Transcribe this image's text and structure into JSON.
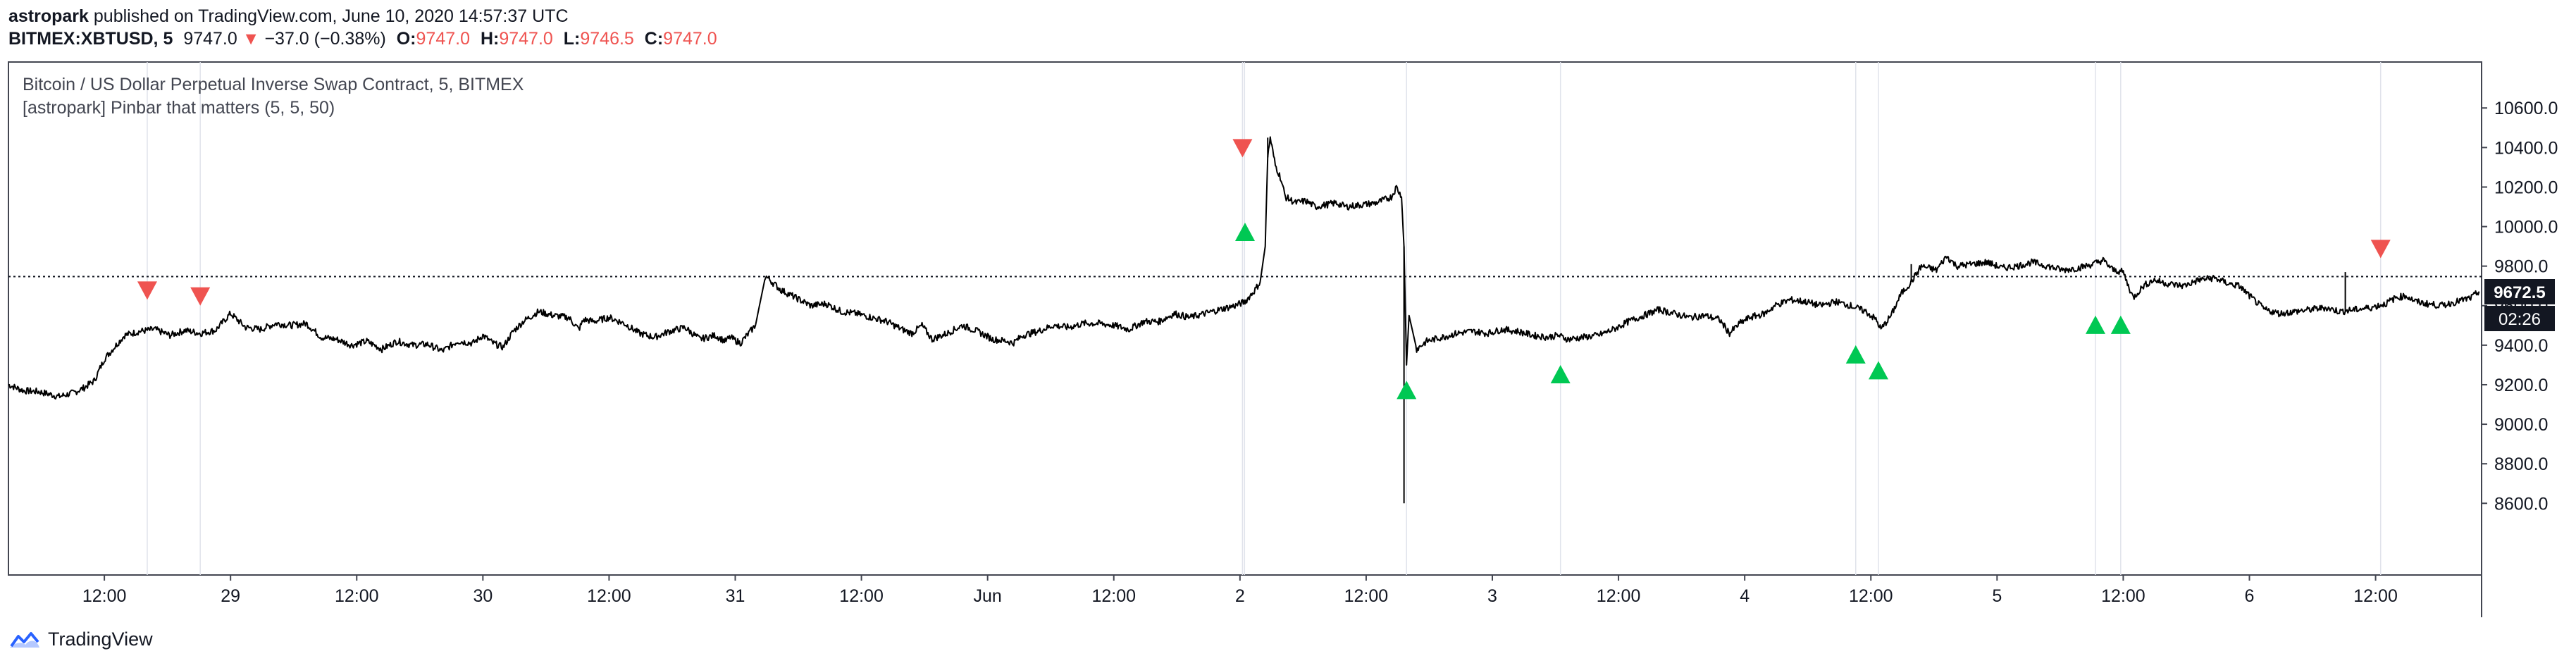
{
  "publish": {
    "author": "astropark",
    "text": "published on TradingView.com, June 10, 2020 14:57:37 UTC"
  },
  "ticker": {
    "symbol": "BITMEX:XBTUSD, 5",
    "last": "9747.0",
    "arrow": "▼",
    "change": "−37.0 (−0.38%)",
    "o_label": "O:",
    "o": "9747.0",
    "h_label": "H:",
    "h": "9747.0",
    "l_label": "L:",
    "l": "9746.5",
    "c_label": "C:",
    "c": "9747.0"
  },
  "pane": {
    "title": "Bitcoin / US Dollar Perpetual Inverse Swap Contract, 5, BITMEX",
    "indicator": "[astropark] Pinbar that matters (5, 5, 50)"
  },
  "price_tag": {
    "price": "9672.5",
    "countdown": "02:26"
  },
  "footer": {
    "brand": "TradingView"
  },
  "colors": {
    "bear": "#ef5350",
    "bull": "#00c853",
    "line": "#000000",
    "axis": "#131722",
    "grid": "#e0e3eb"
  },
  "chart_data": {
    "type": "line",
    "series": [
      {
        "points": [
          [
            0,
            9200
          ],
          [
            6,
            9170
          ],
          [
            12,
            9165
          ],
          [
            20,
            9140
          ],
          [
            26,
            9160
          ],
          [
            30,
            9185
          ],
          [
            34,
            9220
          ],
          [
            38,
            9330
          ],
          [
            42,
            9390
          ],
          [
            46,
            9450
          ],
          [
            52,
            9470
          ],
          [
            58,
            9480
          ],
          [
            64,
            9450
          ],
          [
            70,
            9475
          ],
          [
            76,
            9460
          ],
          [
            82,
            9475
          ],
          [
            88,
            9560
          ],
          [
            94,
            9490
          ],
          [
            100,
            9480
          ],
          [
            106,
            9510
          ],
          [
            112,
            9500
          ],
          [
            118,
            9510
          ],
          [
            124,
            9440
          ],
          [
            130,
            9430
          ],
          [
            136,
            9400
          ],
          [
            142,
            9420
          ],
          [
            148,
            9380
          ],
          [
            154,
            9420
          ],
          [
            160,
            9400
          ],
          [
            166,
            9405
          ],
          [
            172,
            9370
          ],
          [
            178,
            9420
          ],
          [
            184,
            9410
          ],
          [
            188,
            9450
          ],
          [
            192,
            9410
          ],
          [
            196,
            9390
          ],
          [
            200,
            9470
          ],
          [
            204,
            9520
          ],
          [
            210,
            9570
          ],
          [
            216,
            9550
          ],
          [
            222,
            9540
          ],
          [
            226,
            9480
          ],
          [
            228,
            9530
          ],
          [
            232,
            9520
          ],
          [
            238,
            9540
          ],
          [
            244,
            9510
          ],
          [
            250,
            9460
          ],
          [
            256,
            9440
          ],
          [
            262,
            9470
          ],
          [
            268,
            9490
          ],
          [
            274,
            9430
          ],
          [
            280,
            9450
          ],
          [
            284,
            9420
          ],
          [
            286,
            9440
          ],
          [
            290,
            9410
          ],
          [
            296,
            9500
          ],
          [
            300,
            9750
          ],
          [
            306,
            9680
          ],
          [
            312,
            9640
          ],
          [
            318,
            9600
          ],
          [
            324,
            9610
          ],
          [
            330,
            9570
          ],
          [
            336,
            9560
          ],
          [
            342,
            9540
          ],
          [
            348,
            9520
          ],
          [
            354,
            9480
          ],
          [
            358,
            9460
          ],
          [
            362,
            9500
          ],
          [
            366,
            9430
          ],
          [
            372,
            9460
          ],
          [
            378,
            9500
          ],
          [
            384,
            9470
          ],
          [
            390,
            9430
          ],
          [
            396,
            9420
          ],
          [
            398,
            9410
          ],
          [
            402,
            9450
          ],
          [
            408,
            9470
          ],
          [
            414,
            9500
          ],
          [
            420,
            9490
          ],
          [
            426,
            9510
          ],
          [
            432,
            9510
          ],
          [
            438,
            9500
          ],
          [
            444,
            9480
          ],
          [
            450,
            9520
          ],
          [
            456,
            9520
          ],
          [
            462,
            9560
          ],
          [
            468,
            9540
          ],
          [
            474,
            9560
          ],
          [
            480,
            9580
          ],
          [
            486,
            9600
          ],
          [
            490,
            9620
          ],
          [
            494,
            9680
          ],
          [
            496,
            9720
          ],
          [
            498,
            9900
          ],
          [
            499,
            10350
          ],
          [
            500,
            10450
          ],
          [
            502,
            10310
          ],
          [
            504,
            10250
          ],
          [
            506,
            10150
          ],
          [
            510,
            10120
          ],
          [
            514,
            10130
          ],
          [
            518,
            10100
          ],
          [
            522,
            10110
          ],
          [
            526,
            10120
          ],
          [
            530,
            10100
          ],
          [
            536,
            10110
          ],
          [
            542,
            10120
          ],
          [
            548,
            10150
          ],
          [
            550,
            10200
          ],
          [
            552,
            10150
          ],
          [
            553,
            9900
          ],
          [
            554,
            9300
          ],
          [
            555,
            9550
          ],
          [
            558,
            9380
          ],
          [
            562,
            9420
          ],
          [
            568,
            9440
          ],
          [
            574,
            9460
          ],
          [
            580,
            9470
          ],
          [
            586,
            9460
          ],
          [
            592,
            9480
          ],
          [
            598,
            9470
          ],
          [
            604,
            9450
          ],
          [
            610,
            9440
          ],
          [
            614,
            9450
          ],
          [
            616,
            9440
          ],
          [
            618,
            9430
          ],
          [
            624,
            9440
          ],
          [
            630,
            9450
          ],
          [
            636,
            9480
          ],
          [
            642,
            9520
          ],
          [
            648,
            9550
          ],
          [
            654,
            9580
          ],
          [
            660,
            9560
          ],
          [
            666,
            9540
          ],
          [
            672,
            9550
          ],
          [
            678,
            9530
          ],
          [
            682,
            9460
          ],
          [
            686,
            9510
          ],
          [
            690,
            9540
          ],
          [
            696,
            9560
          ],
          [
            700,
            9600
          ],
          [
            706,
            9630
          ],
          [
            712,
            9620
          ],
          [
            718,
            9600
          ],
          [
            724,
            9620
          ],
          [
            730,
            9600
          ],
          [
            736,
            9570
          ],
          [
            740,
            9530
          ],
          [
            742,
            9480
          ],
          [
            746,
            9550
          ],
          [
            750,
            9660
          ],
          [
            754,
            9720
          ],
          [
            758,
            9800
          ],
          [
            764,
            9780
          ],
          [
            768,
            9850
          ],
          [
            772,
            9800
          ],
          [
            778,
            9810
          ],
          [
            784,
            9820
          ],
          [
            790,
            9790
          ],
          [
            796,
            9800
          ],
          [
            802,
            9820
          ],
          [
            808,
            9800
          ],
          [
            814,
            9780
          ],
          [
            820,
            9790
          ],
          [
            826,
            9810
          ],
          [
            830,
            9830
          ],
          [
            834,
            9780
          ],
          [
            838,
            9770
          ],
          [
            840,
            9700
          ],
          [
            842,
            9640
          ],
          [
            846,
            9700
          ],
          [
            850,
            9730
          ],
          [
            856,
            9710
          ],
          [
            862,
            9700
          ],
          [
            868,
            9730
          ],
          [
            874,
            9740
          ],
          [
            880,
            9710
          ],
          [
            884,
            9700
          ],
          [
            888,
            9650
          ],
          [
            894,
            9580
          ],
          [
            900,
            9560
          ],
          [
            906,
            9570
          ],
          [
            912,
            9580
          ],
          [
            918,
            9590
          ],
          [
            924,
            9570
          ],
          [
            930,
            9580
          ],
          [
            936,
            9590
          ],
          [
            942,
            9610
          ],
          [
            946,
            9640
          ],
          [
            950,
            9650
          ],
          [
            954,
            9620
          ],
          [
            958,
            9610
          ],
          [
            964,
            9600
          ],
          [
            970,
            9620
          ],
          [
            976,
            9640
          ],
          [
            979,
            9672
          ]
        ],
        "spikes": [
          [
            553,
            8600
          ],
          [
            499,
            10450
          ],
          [
            754,
            9810
          ],
          [
            926,
            9770
          ]
        ]
      }
    ],
    "current_price": 9747,
    "ylim": [
      8380,
      10690
    ],
    "xlim": [
      0,
      980
    ],
    "y_ticks": [
      "8600.0",
      "8800.0",
      "9000.0",
      "9200.0",
      "9400.0",
      "9600.0",
      "9800.0",
      "10000.0",
      "10200.0",
      "10400.0",
      "10600.0"
    ],
    "x_ticks": [
      {
        "label": "12:00",
        "x": 38
      },
      {
        "label": "29",
        "x": 88
      },
      {
        "label": "12:00",
        "x": 138
      },
      {
        "label": "30",
        "x": 188
      },
      {
        "label": "12:00",
        "x": 238
      },
      {
        "label": "31",
        "x": 288
      },
      {
        "label": "12:00",
        "x": 338
      },
      {
        "label": "Jun",
        "x": 388
      },
      {
        "label": "12:00",
        "x": 438
      },
      {
        "label": "2",
        "x": 488
      },
      {
        "label": "12:00",
        "x": 538
      },
      {
        "label": "3",
        "x": 588
      },
      {
        "label": "12:00",
        "x": 638
      },
      {
        "label": "4",
        "x": 688
      },
      {
        "label": "12:00",
        "x": 738
      },
      {
        "label": "5",
        "x": 788
      },
      {
        "label": "12:00",
        "x": 838
      },
      {
        "label": "6",
        "x": 888
      },
      {
        "label": "12:00",
        "x": 938
      }
    ],
    "bear_signals": [
      [
        55,
        9680
      ],
      [
        76,
        9650
      ],
      [
        489,
        10400
      ],
      [
        940,
        9890
      ]
    ],
    "bull_signals": [
      [
        490,
        9970
      ],
      [
        554,
        9170
      ],
      [
        615,
        9250
      ],
      [
        732,
        9350
      ],
      [
        741,
        9270
      ],
      [
        827,
        9500
      ],
      [
        837,
        9500
      ]
    ],
    "x_gridlines": [
      55,
      76,
      489,
      489.8,
      554,
      615,
      732,
      741,
      827,
      837,
      940
    ]
  }
}
